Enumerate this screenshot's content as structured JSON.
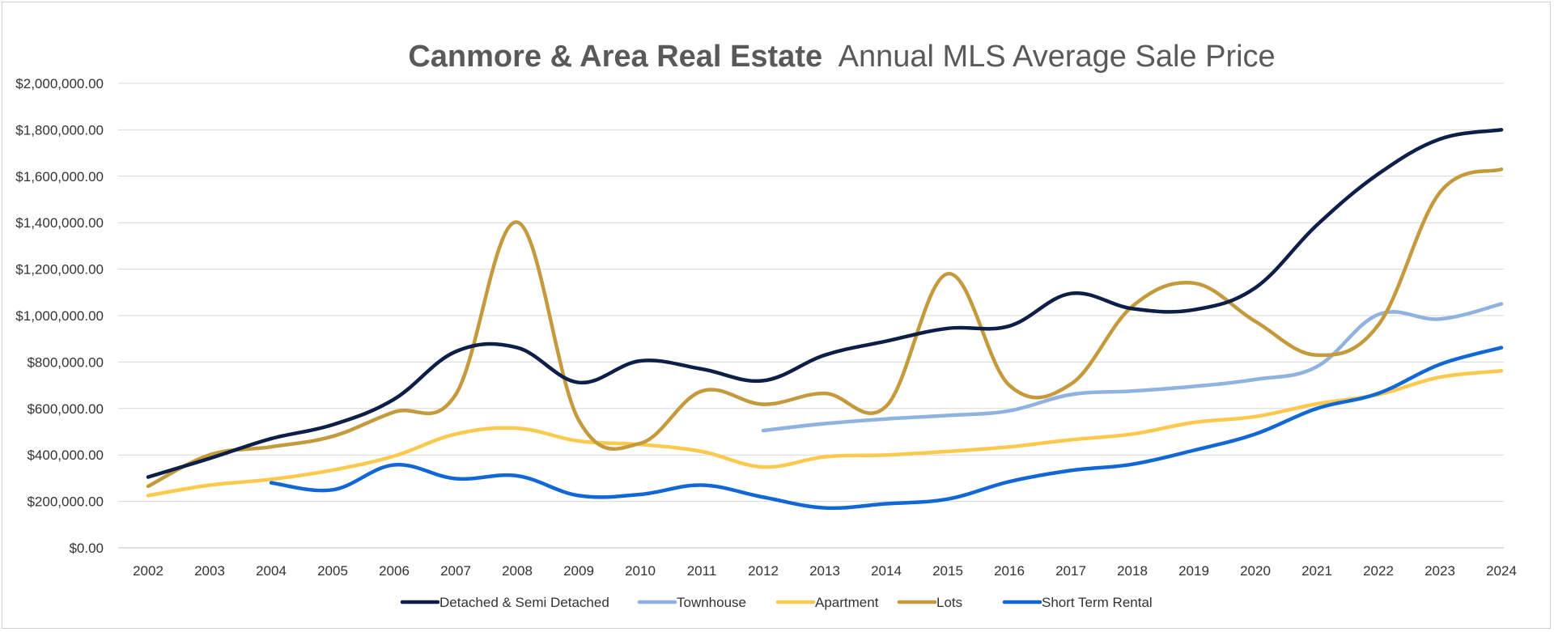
{
  "chart_data": {
    "type": "line",
    "title_bold": "Canmore & Area Real Estate",
    "title_rest": "Annual MLS Average Sale Price",
    "xlabel": "",
    "ylabel": "",
    "ylim": [
      0,
      2000000
    ],
    "y_ticks": [
      0,
      200000,
      400000,
      600000,
      800000,
      1000000,
      1200000,
      1400000,
      1600000,
      1800000,
      2000000
    ],
    "y_tick_labels": [
      "$0.00",
      "$200,000.00",
      "$400,000.00",
      "$600,000.00",
      "$800,000.00",
      "$1,000,000.00",
      "$1,200,000.00",
      "$1,400,000.00",
      "$1,600,000.00",
      "$1,800,000.00",
      "$2,000,000.00"
    ],
    "grid": true,
    "legend_position": "bottom",
    "categories": [
      "2002",
      "2003",
      "2004",
      "2005",
      "2006",
      "2007",
      "2008",
      "2009",
      "2010",
      "2011",
      "2012",
      "2013",
      "2014",
      "2015",
      "2016",
      "2017",
      "2018",
      "2019",
      "2020",
      "2021",
      "2022",
      "2023",
      "2024"
    ],
    "series": [
      {
        "name": "Detached & Semi Detached",
        "color": "#0d1f47",
        "values": [
          305000,
          385000,
          470000,
          530000,
          640000,
          845000,
          862000,
          712000,
          805000,
          770000,
          720000,
          830000,
          890000,
          945000,
          955000,
          1095000,
          1030000,
          1025000,
          1120000,
          1390000,
          1610000,
          1760000,
          1800000
        ]
      },
      {
        "name": "Townhouse",
        "color": "#8fb2e0",
        "values": [
          null,
          null,
          null,
          null,
          null,
          null,
          null,
          null,
          null,
          null,
          505000,
          535000,
          555000,
          570000,
          590000,
          660000,
          675000,
          695000,
          725000,
          780000,
          1005000,
          985000,
          1050000
        ]
      },
      {
        "name": "Apartment",
        "color": "#fcc94f",
        "values": [
          225000,
          270000,
          295000,
          335000,
          395000,
          490000,
          515000,
          460000,
          445000,
          415000,
          348000,
          392000,
          400000,
          415000,
          435000,
          465000,
          490000,
          540000,
          565000,
          620000,
          660000,
          735000,
          762000
        ]
      },
      {
        "name": "Lots",
        "color": "#c49a3c",
        "values": [
          265000,
          400000,
          435000,
          480000,
          585000,
          660000,
          1402000,
          550000,
          450000,
          675000,
          618000,
          665000,
          610000,
          1180000,
          700000,
          705000,
          1040000,
          1140000,
          975000,
          830000,
          960000,
          1530000,
          1630000
        ]
      },
      {
        "name": "Short Term Rental",
        "color": "#1167d6",
        "values": [
          null,
          null,
          280000,
          250000,
          357000,
          298000,
          310000,
          225000,
          230000,
          270000,
          218000,
          172000,
          190000,
          210000,
          285000,
          333000,
          360000,
          420000,
          490000,
          600000,
          665000,
          790000,
          862000
        ]
      }
    ]
  }
}
